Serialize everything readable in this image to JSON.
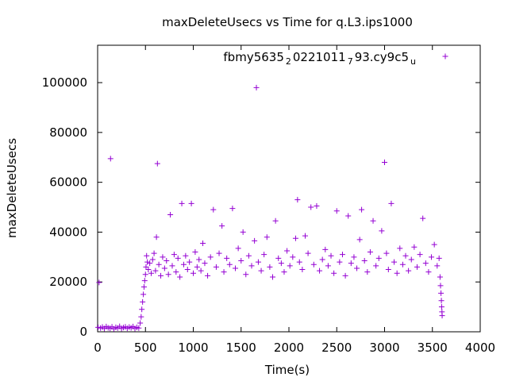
{
  "chart_data": {
    "type": "scatter",
    "title": "maxDeleteUsecs vs Time for q.L3.ips1000",
    "xlabel": "Time(s)",
    "ylabel": "maxDeleteUsecs",
    "xlim": [
      0,
      4000
    ],
    "ylim": [
      0,
      115000
    ],
    "xticks": [
      "0",
      "500",
      "1000",
      "1500",
      "2000",
      "2500",
      "3000",
      "3500",
      "4000"
    ],
    "yticks": [
      "0",
      "20000",
      "40000",
      "60000",
      "80000",
      "100000"
    ],
    "grid": false,
    "legend_position": "top-right",
    "marker": "+",
    "marker_color": "#9400d3",
    "series": [
      {
        "name_parts": [
          {
            "text": "fbmy5635",
            "sub": false
          },
          {
            "text": "2",
            "sub": true
          },
          {
            "text": "0221011",
            "sub": false
          },
          {
            "text": "7",
            "sub": true
          },
          {
            "text": "93.cy9c5",
            "sub": false
          },
          {
            "text": "u",
            "sub": true
          }
        ],
        "points": [
          [
            5,
            1800
          ],
          [
            15,
            19800
          ],
          [
            30,
            1500
          ],
          [
            50,
            1900
          ],
          [
            70,
            1300
          ],
          [
            90,
            2100
          ],
          [
            110,
            1600
          ],
          [
            130,
            1400
          ],
          [
            135,
            69500
          ],
          [
            150,
            2000
          ],
          [
            170,
            1200
          ],
          [
            190,
            1800
          ],
          [
            210,
            1500
          ],
          [
            230,
            2200
          ],
          [
            250,
            1300
          ],
          [
            270,
            1700
          ],
          [
            290,
            2000
          ],
          [
            310,
            1400
          ],
          [
            330,
            1900
          ],
          [
            350,
            1600
          ],
          [
            370,
            2100
          ],
          [
            390,
            1300
          ],
          [
            410,
            1800
          ],
          [
            430,
            1500
          ],
          [
            445,
            3500
          ],
          [
            455,
            6000
          ],
          [
            462,
            9000
          ],
          [
            470,
            12000
          ],
          [
            478,
            15000
          ],
          [
            485,
            18000
          ],
          [
            492,
            20500
          ],
          [
            500,
            23000
          ],
          [
            506,
            26000
          ],
          [
            512,
            30500
          ],
          [
            520,
            28000
          ],
          [
            530,
            25000
          ],
          [
            545,
            27500
          ],
          [
            560,
            23500
          ],
          [
            575,
            29000
          ],
          [
            590,
            31500
          ],
          [
            605,
            24500
          ],
          [
            615,
            38000
          ],
          [
            625,
            67500
          ],
          [
            640,
            27000
          ],
          [
            660,
            22500
          ],
          [
            680,
            30000
          ],
          [
            700,
            25500
          ],
          [
            720,
            28500
          ],
          [
            740,
            23000
          ],
          [
            760,
            47000
          ],
          [
            780,
            26500
          ],
          [
            800,
            31000
          ],
          [
            820,
            24000
          ],
          [
            840,
            29500
          ],
          [
            860,
            22000
          ],
          [
            880,
            51500
          ],
          [
            900,
            27000
          ],
          [
            920,
            30500
          ],
          [
            940,
            25000
          ],
          [
            960,
            28000
          ],
          [
            980,
            51500
          ],
          [
            1000,
            23500
          ],
          [
            1020,
            32000
          ],
          [
            1040,
            26000
          ],
          [
            1060,
            29000
          ],
          [
            1080,
            24500
          ],
          [
            1100,
            35500
          ],
          [
            1120,
            27500
          ],
          [
            1150,
            22500
          ],
          [
            1180,
            30000
          ],
          [
            1210,
            49000
          ],
          [
            1240,
            26000
          ],
          [
            1270,
            31500
          ],
          [
            1300,
            42500
          ],
          [
            1320,
            24000
          ],
          [
            1350,
            29500
          ],
          [
            1380,
            27000
          ],
          [
            1410,
            49500
          ],
          [
            1440,
            25500
          ],
          [
            1470,
            33500
          ],
          [
            1500,
            28500
          ],
          [
            1520,
            40000
          ],
          [
            1550,
            23000
          ],
          [
            1580,
            30500
          ],
          [
            1610,
            26500
          ],
          [
            1640,
            36500
          ],
          [
            1660,
            98000
          ],
          [
            1680,
            28000
          ],
          [
            1710,
            24500
          ],
          [
            1740,
            31000
          ],
          [
            1770,
            38000
          ],
          [
            1800,
            26000
          ],
          [
            1830,
            22000
          ],
          [
            1860,
            44500
          ],
          [
            1890,
            29500
          ],
          [
            1920,
            27500
          ],
          [
            1950,
            24000
          ],
          [
            1980,
            32500
          ],
          [
            2010,
            26500
          ],
          [
            2040,
            30000
          ],
          [
            2070,
            37500
          ],
          [
            2090,
            53000
          ],
          [
            2110,
            28000
          ],
          [
            2140,
            25000
          ],
          [
            2170,
            38500
          ],
          [
            2200,
            31500
          ],
          [
            2230,
            50000
          ],
          [
            2260,
            27000
          ],
          [
            2290,
            50500
          ],
          [
            2320,
            24500
          ],
          [
            2350,
            29000
          ],
          [
            2380,
            33000
          ],
          [
            2410,
            26500
          ],
          [
            2440,
            30500
          ],
          [
            2470,
            23500
          ],
          [
            2500,
            48500
          ],
          [
            2530,
            28000
          ],
          [
            2560,
            31000
          ],
          [
            2590,
            22500
          ],
          [
            2620,
            46500
          ],
          [
            2650,
            27500
          ],
          [
            2680,
            30000
          ],
          [
            2710,
            25500
          ],
          [
            2740,
            37000
          ],
          [
            2760,
            49000
          ],
          [
            2790,
            28500
          ],
          [
            2820,
            24000
          ],
          [
            2850,
            32000
          ],
          [
            2880,
            44500
          ],
          [
            2910,
            26500
          ],
          [
            2940,
            29500
          ],
          [
            2970,
            40500
          ],
          [
            3000,
            68000
          ],
          [
            3020,
            31500
          ],
          [
            3040,
            25000
          ],
          [
            3070,
            51500
          ],
          [
            3100,
            28000
          ],
          [
            3130,
            23500
          ],
          [
            3160,
            33500
          ],
          [
            3190,
            27000
          ],
          [
            3220,
            30500
          ],
          [
            3250,
            24500
          ],
          [
            3280,
            29000
          ],
          [
            3310,
            34000
          ],
          [
            3340,
            26000
          ],
          [
            3370,
            31000
          ],
          [
            3400,
            45500
          ],
          [
            3430,
            27500
          ],
          [
            3460,
            24000
          ],
          [
            3490,
            30000
          ],
          [
            3520,
            35000
          ],
          [
            3550,
            26500
          ],
          [
            3570,
            29500
          ],
          [
            3580,
            22000
          ],
          [
            3585,
            18500
          ],
          [
            3590,
            15500
          ],
          [
            3594,
            12500
          ],
          [
            3597,
            10000
          ],
          [
            3600,
            8000
          ],
          [
            3602,
            6500
          ]
        ]
      }
    ]
  }
}
